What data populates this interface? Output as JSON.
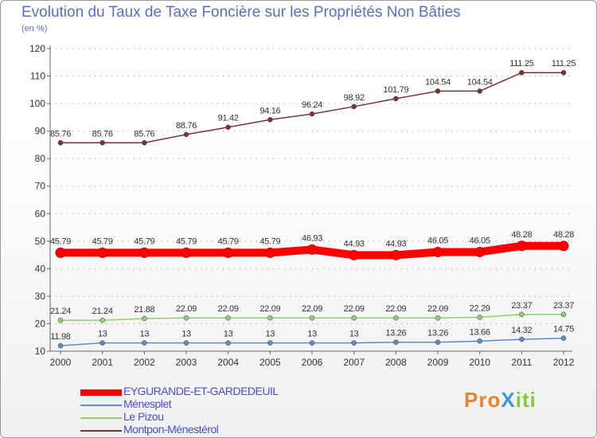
{
  "title": "Evolution du Taux de Taxe Foncière sur les Propriétés Non Bâties",
  "subtitle": "(en %)",
  "brand": "ProXiti",
  "colors": {
    "title": "#5a6fc0",
    "axis": "#666666",
    "grid": "#cc3333",
    "label": "#333333"
  },
  "chart_data": {
    "type": "line",
    "title": "Evolution du Taux de Taxe Foncière sur les Propriétés Non Bâties",
    "ylabel": "(en %)",
    "xlabel": "",
    "ylim": [
      10,
      120
    ],
    "yticks": [
      10,
      20,
      30,
      40,
      50,
      60,
      70,
      80,
      90,
      100,
      110,
      120
    ],
    "categories": [
      "2000",
      "2001",
      "2002",
      "2003",
      "2004",
      "2005",
      "2006",
      "2007",
      "2008",
      "2009",
      "2010",
      "2011",
      "2012"
    ],
    "series": [
      {
        "name": "Montpon-Ménestérol",
        "color": "#7a3535",
        "values": [
          85.76,
          85.76,
          85.76,
          88.76,
          91.42,
          94.16,
          96.24,
          98.92,
          101.79,
          104.54,
          104.54,
          111.25,
          111.25
        ],
        "labels": [
          "85.76",
          "85.76",
          "85.76",
          "88.76",
          "91.42",
          "94.16",
          "96.24",
          "98.92",
          "101.79",
          "104.54",
          "104.54",
          "111.25",
          "111.25"
        ]
      },
      {
        "name": "EYGURANDE-ET-GARDEDEUIL",
        "color": "#ff0000",
        "values": [
          45.79,
          45.79,
          45.79,
          45.79,
          45.79,
          45.79,
          46.93,
          44.93,
          44.93,
          46.05,
          46.05,
          48.28,
          48.28
        ],
        "labels": [
          "45.79",
          "45.79",
          "45.79",
          "45.79",
          "45.79",
          "45.79",
          "46.93",
          "44.93",
          "44.93",
          "46.05",
          "46.05",
          "48.28",
          "48.28"
        ]
      },
      {
        "name": "Le Pizou",
        "color": "#90d070",
        "values": [
          21.24,
          21.24,
          21.88,
          22.09,
          22.09,
          22.09,
          22.09,
          22.09,
          22.09,
          22.09,
          22.29,
          23.37,
          23.37
        ],
        "labels": [
          "21.24",
          "21.24",
          "21.88",
          "22.09",
          "22.09",
          "22.09",
          "22.09",
          "22.09",
          "22.09",
          "22.09",
          "22.29",
          "23.37",
          "23.37"
        ]
      },
      {
        "name": "Ménesplet",
        "color": "#5c8fc8",
        "values": [
          11.98,
          13,
          13,
          13,
          13,
          13,
          13,
          13,
          13.26,
          13.26,
          13.66,
          14.32,
          14.75
        ],
        "labels": [
          "11.98",
          "13",
          "13",
          "13",
          "13",
          "13",
          "13",
          "13",
          "13.26",
          "13.26",
          "13.66",
          "14.32",
          "14.75"
        ]
      }
    ]
  },
  "legend": [
    {
      "name": "EYGURANDE-ET-GARDEDEUIL",
      "color": "#ff0000",
      "weight": "thick"
    },
    {
      "name": "Ménesplet",
      "color": "#5c8fc8",
      "weight": "thin"
    },
    {
      "name": "Le Pizou",
      "color": "#90d070",
      "weight": "thin"
    },
    {
      "name": "Montpon-Ménestérol",
      "color": "#7a3535",
      "weight": "thin"
    }
  ]
}
